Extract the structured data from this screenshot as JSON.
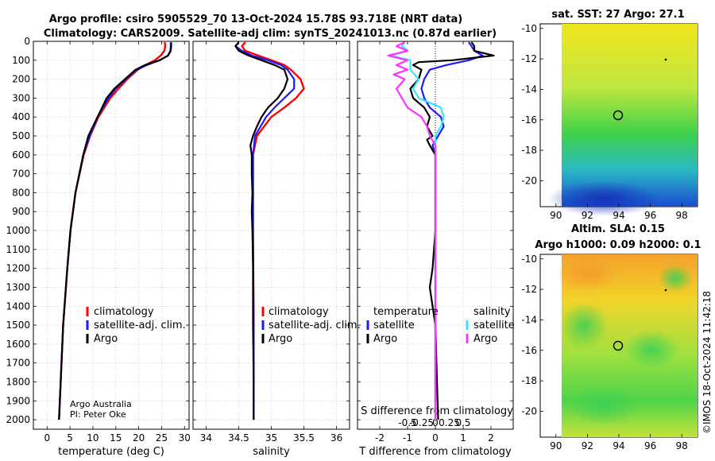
{
  "titles": {
    "line1": "Argo profile: csiro 5905529_70 13-Oct-2024 15.78S 93.718E (NRT data)",
    "line2": "Climatology: CARS2009. Satellite-adj clim: synTS_20241013.nc (0.87d earlier)",
    "map1": "sat. SST: 27 Argo: 27.1",
    "map2a": "Altim. SLA: 0.15",
    "map2b": "Argo h1000: 0.09 h2000: 0.1"
  },
  "annotations": {
    "credit1": "Argo Australia",
    "credit2": "PI: Peter Oke",
    "imos": "©IMOS 18-Oct-2024 11:42:18"
  },
  "colors": {
    "climatology": "#ff0000",
    "satellite": "#1a1aff",
    "argo": "#000000",
    "sal_sat": "#33e6ff",
    "sal_argo": "#ff33ff"
  },
  "chart_data": [
    {
      "type": "line",
      "name": "temperature",
      "xlabel": "temperature (deg C)",
      "ylabel": "",
      "xlim": [
        -3,
        31
      ],
      "ylim": [
        2050,
        0
      ],
      "xticks": [
        0,
        5,
        10,
        15,
        20,
        25,
        30
      ],
      "yticks": [
        0,
        100,
        200,
        300,
        400,
        500,
        600,
        700,
        800,
        900,
        1000,
        1100,
        1200,
        1300,
        1400,
        1500,
        1600,
        1700,
        1800,
        1900,
        2000
      ],
      "legend": [
        "climatology",
        "satellite-adj. clim.",
        "Argo"
      ],
      "series": [
        {
          "name": "climatology",
          "depth": [
            5,
            25,
            50,
            75,
            100,
            125,
            150,
            200,
            250,
            300,
            400,
            500,
            600,
            800,
            1000,
            1200,
            1500,
            2000
          ],
          "values": [
            25.7,
            25.8,
            25.6,
            24.8,
            23.5,
            21.5,
            19.8,
            17.5,
            15.6,
            13.8,
            11.2,
            9.4,
            8.0,
            6.2,
            5.1,
            4.4,
            3.5,
            2.6
          ]
        },
        {
          "name": "satellite-adj. clim.",
          "depth": [
            5,
            25,
            50,
            75,
            100,
            125,
            150,
            200,
            250,
            300,
            400,
            500,
            600,
            800,
            1000,
            1200,
            1500,
            2000
          ],
          "values": [
            27.0,
            27.0,
            26.9,
            26.4,
            24.5,
            21.8,
            19.6,
            17.2,
            15.0,
            13.4,
            11.0,
            9.3,
            7.9,
            6.2,
            5.1,
            4.4,
            3.5,
            2.6
          ]
        },
        {
          "name": "Argo",
          "depth": [
            5,
            25,
            50,
            75,
            100,
            125,
            150,
            200,
            250,
            300,
            350,
            400,
            500,
            600,
            800,
            1000,
            1200,
            1500,
            2000
          ],
          "values": [
            27.1,
            27.1,
            27.0,
            26.4,
            24.6,
            21.4,
            19.3,
            17.0,
            14.7,
            13.0,
            12.0,
            11.0,
            9.0,
            7.9,
            6.2,
            5.1,
            4.4,
            3.5,
            2.6
          ]
        }
      ]
    },
    {
      "type": "line",
      "name": "salinity",
      "xlabel": "salinity",
      "xlim": [
        33.8,
        36.2
      ],
      "ylim": [
        2050,
        0
      ],
      "xticks": [
        34,
        34.5,
        35,
        35.5,
        36
      ],
      "legend": [
        "climatology",
        "satellite-adj. clim.",
        "Argo"
      ],
      "series": [
        {
          "name": "climatology",
          "depth": [
            5,
            25,
            50,
            75,
            100,
            125,
            150,
            200,
            250,
            300,
            350,
            400,
            500,
            600,
            800,
            1000,
            1500,
            2000
          ],
          "values": [
            34.6,
            34.55,
            34.6,
            34.8,
            35.0,
            35.2,
            35.3,
            35.45,
            35.5,
            35.38,
            35.2,
            35.0,
            34.78,
            34.72,
            34.72,
            34.72,
            34.73,
            34.73
          ]
        },
        {
          "name": "satellite-adj. clim.",
          "depth": [
            5,
            25,
            50,
            75,
            100,
            125,
            150,
            200,
            250,
            300,
            350,
            400,
            500,
            600,
            800,
            1000,
            1500,
            2000
          ],
          "values": [
            34.5,
            34.45,
            34.55,
            34.7,
            34.95,
            35.15,
            35.25,
            35.35,
            35.35,
            35.2,
            35.05,
            34.92,
            34.75,
            34.72,
            34.72,
            34.72,
            34.73,
            34.73
          ]
        },
        {
          "name": "Argo",
          "depth": [
            5,
            25,
            50,
            75,
            100,
            125,
            150,
            200,
            250,
            300,
            350,
            400,
            450,
            500,
            550,
            600,
            700,
            800,
            900,
            1000,
            1200,
            1500,
            1800,
            2000
          ],
          "values": [
            34.5,
            34.45,
            34.5,
            34.65,
            34.85,
            35.05,
            35.2,
            35.25,
            35.2,
            35.1,
            34.95,
            34.85,
            34.78,
            34.72,
            34.68,
            34.7,
            34.7,
            34.71,
            34.7,
            34.71,
            34.72,
            34.72,
            34.73,
            34.73
          ]
        }
      ]
    },
    {
      "type": "line",
      "name": "difference",
      "xlabel": "T difference from climatology",
      "top_xlabel": "S difference from climatology",
      "xlim": [
        -2.8,
        2.8
      ],
      "ylim": [
        2050,
        0
      ],
      "xticks": [
        -2,
        -1,
        0,
        1,
        2
      ],
      "top_xticks": [
        "-0.5",
        "-0.25",
        "0",
        "0.25",
        "0.5"
      ],
      "legend_temperature": {
        "title": "temperature",
        "items": [
          "satellite",
          "Argo"
        ]
      },
      "legend_salinity": {
        "title": "salinity",
        "items": [
          "satellite",
          "Argo"
        ]
      },
      "series": [
        {
          "name": "temperature satellite",
          "depth": [
            5,
            25,
            50,
            75,
            100,
            125,
            150,
            200,
            250,
            300,
            350,
            400,
            450,
            500,
            550,
            600,
            800,
            1000,
            1500,
            2000
          ],
          "values": [
            1.2,
            1.3,
            1.4,
            1.7,
            1.2,
            0.4,
            -0.2,
            -0.4,
            -0.5,
            -0.4,
            -0.2,
            0.2,
            0.3,
            0.1,
            -0.1,
            0.0,
            0.0,
            0.0,
            0.0,
            0.0
          ]
        },
        {
          "name": "temperature Argo",
          "depth": [
            5,
            25,
            50,
            75,
            100,
            110,
            125,
            150,
            200,
            250,
            300,
            350,
            400,
            450,
            500,
            520,
            550,
            600,
            800,
            1000,
            1200,
            1300,
            1500,
            2000
          ],
          "values": [
            1.3,
            1.4,
            1.4,
            2.1,
            0.6,
            -0.6,
            -0.8,
            -0.5,
            -0.6,
            -0.9,
            -0.8,
            -0.4,
            -0.2,
            -0.3,
            -0.1,
            -0.3,
            -0.2,
            0.0,
            0.0,
            0.0,
            -0.1,
            -0.2,
            0.0,
            0.1
          ]
        },
        {
          "name": "salinity satellite",
          "depth": [
            5,
            25,
            50,
            75,
            100,
            150,
            200,
            250,
            300,
            350,
            400,
            450,
            500,
            600,
            800,
            1000,
            1500,
            2000
          ],
          "values": [
            -1.1,
            -1.2,
            -1.0,
            -1.6,
            -0.9,
            -0.9,
            -0.6,
            -0.8,
            -0.6,
            0.2,
            0.3,
            0.2,
            0.0,
            0.0,
            0.0,
            0.0,
            0.0,
            0.0
          ]
        },
        {
          "name": "salinity Argo",
          "depth": [
            5,
            25,
            50,
            75,
            100,
            125,
            150,
            175,
            200,
            250,
            300,
            350,
            400,
            450,
            500,
            550,
            600,
            700,
            800,
            1000,
            1500,
            2000
          ],
          "values": [
            -1.1,
            -1.4,
            -1.0,
            -1.7,
            -1.0,
            -1.4,
            -1.0,
            -1.5,
            -1.1,
            -1.4,
            -1.2,
            -1.0,
            -0.5,
            -0.3,
            -0.2,
            0.0,
            0.0,
            0.0,
            0.0,
            0.0,
            0.0,
            0.0
          ]
        }
      ]
    },
    {
      "type": "heatmap",
      "name": "satellite SST map",
      "title": "sat. SST: 27 Argo: 27.1",
      "xlim": [
        89,
        99
      ],
      "ylim": [
        -21.7,
        -9.7
      ],
      "xticks": [
        90,
        92,
        94,
        96,
        98
      ],
      "yticks": [
        -10,
        -12,
        -14,
        -16,
        -18,
        -20
      ],
      "argo_position": [
        93.718,
        -15.78
      ]
    },
    {
      "type": "heatmap",
      "name": "altimeter SLA map",
      "title": "Altim. SLA: 0.15",
      "xlim": [
        89,
        99
      ],
      "ylim": [
        -21.7,
        -9.7
      ],
      "xticks": [
        90,
        92,
        94,
        96,
        98
      ],
      "yticks": [
        -10,
        -12,
        -14,
        -16,
        -18,
        -20
      ],
      "argo_position": [
        93.718,
        -15.78
      ]
    }
  ]
}
